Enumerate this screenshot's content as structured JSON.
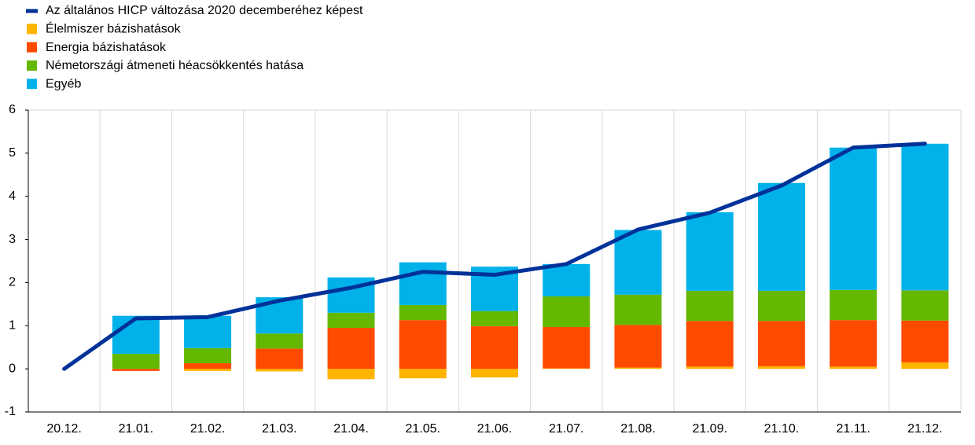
{
  "chart_data": {
    "type": "bar",
    "categories": [
      "20.12.",
      "21.01.",
      "21.02.",
      "21.03.",
      "21.04.",
      "21.05.",
      "21.06.",
      "21.07.",
      "21.08.",
      "21.09.",
      "21.10.",
      "21.11.",
      "21.12."
    ],
    "series": [
      {
        "name": "Az általános HICP változása 2020 decemberéhez képest",
        "type": "line",
        "color": "#003299",
        "values": [
          0,
          1.17,
          1.2,
          1.58,
          1.88,
          2.25,
          2.18,
          2.43,
          3.23,
          3.62,
          4.25,
          5.13,
          5.22
        ]
      },
      {
        "name": "Élelmiszer bázishatások",
        "color": "#ffb400",
        "values": [
          0,
          0,
          -0.05,
          -0.06,
          -0.24,
          -0.22,
          -0.2,
          0.01,
          0.03,
          0.05,
          0.06,
          0.05,
          0.15
        ]
      },
      {
        "name": "Energia bázishatások",
        "color": "#ff4b00",
        "values": [
          0,
          -0.05,
          0.13,
          0.47,
          0.95,
          1.13,
          0.99,
          0.96,
          0.99,
          1.06,
          1.05,
          1.08,
          0.97
        ]
      },
      {
        "name": "Németországi átmeneti héacsökkentés hatása",
        "color": "#65b800",
        "values": [
          0,
          0.35,
          0.35,
          0.35,
          0.35,
          0.35,
          0.35,
          0.71,
          0.7,
          0.7,
          0.7,
          0.7,
          0.7
        ]
      },
      {
        "name": "Egyéb",
        "color": "#00b1ea",
        "values": [
          0,
          0.88,
          0.75,
          0.84,
          0.82,
          0.99,
          1.03,
          0.75,
          1.5,
          1.82,
          2.5,
          3.3,
          3.4
        ]
      }
    ],
    "ylim": [
      -1,
      6
    ],
    "yticks": [
      -1,
      0,
      1,
      2,
      3,
      4,
      5,
      6
    ],
    "grid": true
  }
}
